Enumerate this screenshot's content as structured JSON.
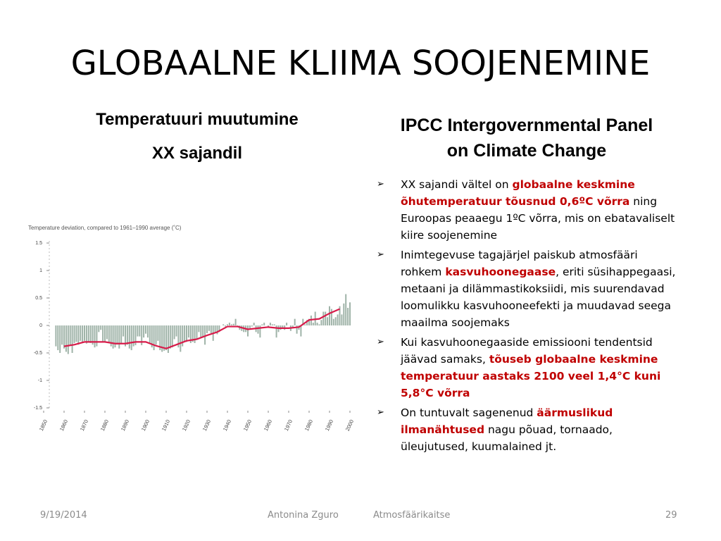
{
  "title": "GLOBAALNE KLIIMA SOOJENEMINE",
  "left_heading": [
    "Temperatuuri muutumine",
    "XX sajandil"
  ],
  "right_heading": [
    "IPCC Intergovernmental Panel",
    "on Climate Change"
  ],
  "bullets": [
    [
      {
        "text": "XX sajandi vältel on ",
        "emphasis": false
      },
      {
        "text": "globaalne keskmine õhutemperatuur tõusnud 0,6ºC võrra",
        "emphasis": true
      },
      {
        "text": " ning Euroopas peaaegu 1ºC võrra, mis on ebatavaliselt kiire soojenemine",
        "emphasis": false
      }
    ],
    [
      {
        "text": "Inimtegevuse tagajärjel paiskub atmosfääri rohkem ",
        "emphasis": false
      },
      {
        "text": "kasvuhoonegaase",
        "emphasis": true
      },
      {
        "text": ", eriti süsihappegaasi, metaani ja dilämmastikoksiidi, mis suurendavad loomulikku kasvuhooneefekti ja muudavad seega maailma soojemaks",
        "emphasis": false
      }
    ],
    [
      {
        "text": "Kui kasvuhoonegaaside emissiooni tendentsid jäävad samaks, ",
        "emphasis": false
      },
      {
        "text": "tõuseb globaalne keskmine temperatuur aastaks 2100 veel 1,4°C kuni 5,8°C võrra",
        "emphasis": true
      }
    ],
    [
      {
        "text": "On tuntuvalt sagenenud ",
        "emphasis": false
      },
      {
        "text": "äärmuslikud ilmanähtused",
        "emphasis": true
      },
      {
        "text": " nagu põuad, tornaado, üleujutused, kuumalained jt.",
        "emphasis": false
      }
    ]
  ],
  "footer": {
    "date": "9/19/2014",
    "author": "Antonina Zguro",
    "topic": "Atmosfäärikaitse",
    "page": "29"
  },
  "chart_data": {
    "type": "bar",
    "title": "Temperature deviation, compared to 1961–1990 average (˚C)",
    "color": "#9fb3a8",
    "x_start": 1856,
    "values": [
      -0.38,
      -0.45,
      -0.5,
      -0.35,
      -0.42,
      -0.48,
      -0.52,
      -0.36,
      -0.5,
      -0.32,
      -0.3,
      -0.35,
      -0.28,
      -0.3,
      -0.28,
      -0.33,
      -0.3,
      -0.32,
      -0.35,
      -0.4,
      -0.38,
      -0.12,
      -0.08,
      -0.3,
      -0.3,
      -0.25,
      -0.32,
      -0.38,
      -0.42,
      -0.4,
      -0.35,
      -0.42,
      -0.32,
      -0.2,
      -0.38,
      -0.35,
      -0.42,
      -0.45,
      -0.38,
      -0.36,
      -0.2,
      -0.2,
      -0.36,
      -0.22,
      -0.15,
      -0.22,
      -0.32,
      -0.4,
      -0.45,
      -0.35,
      -0.28,
      -0.45,
      -0.48,
      -0.46,
      -0.45,
      -0.5,
      -0.42,
      -0.4,
      -0.25,
      -0.2,
      -0.4,
      -0.48,
      -0.38,
      -0.3,
      -0.3,
      -0.22,
      -0.32,
      -0.3,
      -0.32,
      -0.25,
      -0.12,
      -0.22,
      -0.22,
      -0.35,
      -0.14,
      -0.1,
      -0.14,
      -0.28,
      -0.12,
      -0.16,
      -0.12,
      0.0,
      0.02,
      -0.02,
      0.02,
      0.05,
      0.02,
      0.03,
      0.12,
      -0.02,
      -0.08,
      -0.1,
      -0.12,
      -0.12,
      -0.2,
      -0.05,
      -0.02,
      0.05,
      -0.12,
      -0.15,
      -0.22,
      0.02,
      0.05,
      0.0,
      -0.02,
      0.05,
      0.02,
      0.02,
      -0.22,
      -0.12,
      -0.08,
      -0.05,
      -0.08,
      0.05,
      0.0,
      -0.1,
      -0.05,
      0.12,
      -0.15,
      -0.08,
      -0.2,
      0.12,
      0.02,
      0.1,
      0.12,
      0.18,
      0.05,
      0.25,
      0.05,
      0.02,
      0.1,
      0.25,
      0.25,
      0.15,
      0.35,
      0.3,
      0.12,
      0.15,
      0.2,
      0.35,
      0.2,
      0.4,
      0.57,
      0.32,
      0.42
    ],
    "line": {
      "color": "#d81b4a",
      "x": [
        1860,
        1865,
        1870,
        1875,
        1880,
        1885,
        1890,
        1895,
        1900,
        1905,
        1910,
        1915,
        1920,
        1925,
        1930,
        1935,
        1940,
        1945,
        1950,
        1955,
        1960,
        1965,
        1970,
        1975,
        1980,
        1985,
        1990,
        1995
      ],
      "values": [
        -0.38,
        -0.35,
        -0.3,
        -0.3,
        -0.3,
        -0.33,
        -0.33,
        -0.3,
        -0.3,
        -0.37,
        -0.42,
        -0.35,
        -0.28,
        -0.25,
        -0.18,
        -0.12,
        -0.02,
        -0.02,
        -0.07,
        -0.05,
        -0.03,
        -0.05,
        -0.05,
        -0.03,
        0.1,
        0.12,
        0.22,
        0.3
      ]
    },
    "xlim": [
      1850,
      2005
    ],
    "ylim": [
      -1.5,
      1.5
    ],
    "xticks": [
      1850,
      1860,
      1870,
      1880,
      1890,
      1900,
      1910,
      1920,
      1930,
      1940,
      1950,
      1960,
      1970,
      1980,
      1990,
      2000
    ],
    "yticks": [
      1.5,
      1,
      0.5,
      0,
      -0.5,
      -1,
      -1.5
    ]
  }
}
